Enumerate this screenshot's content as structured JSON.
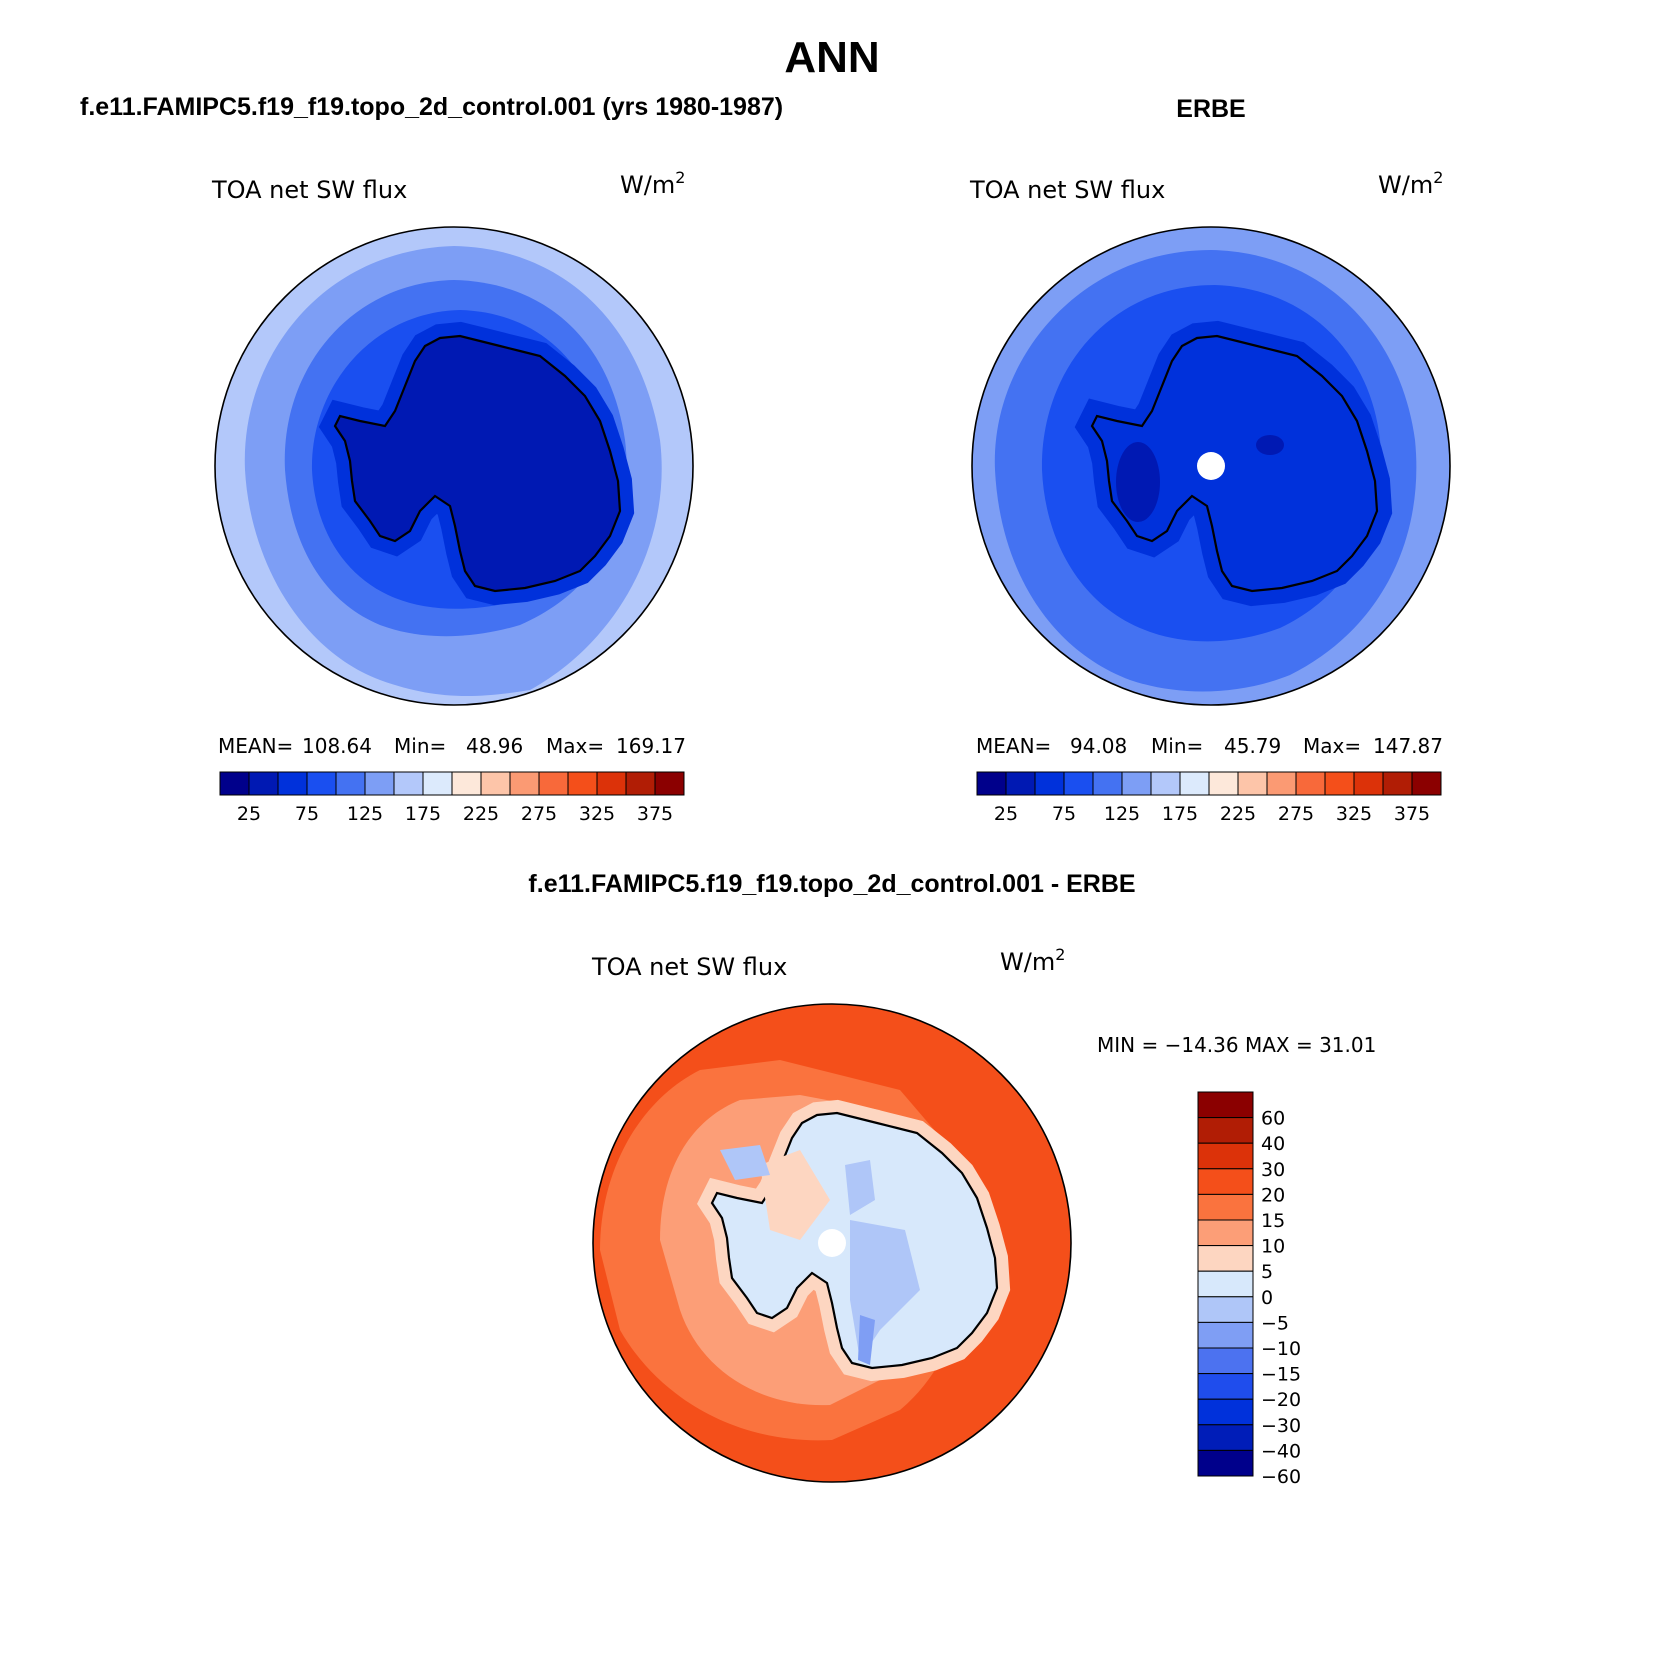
{
  "figure": {
    "title": "ANN",
    "panel_left_title": "f.e11.FAMIPC5.f19_f19.topo_2d_control.001 (yrs 1980-1987)",
    "panel_right_title": "ERBE",
    "panel_diff_title": "f.e11.FAMIPC5.f19_f19.topo_2d_control.001 - ERBE"
  },
  "panels": {
    "model": {
      "variable": "TOA net SW flux",
      "units": "W/m",
      "units_sup": "2",
      "mean_label": "MEAN=",
      "mean": "108.64",
      "min_label": "Min=",
      "min": "48.96",
      "max_label": "Max=",
      "max": "169.17"
    },
    "obs": {
      "variable": "TOA net SW flux",
      "units": "W/m",
      "units_sup": "2",
      "mean_label": "MEAN=",
      "mean": "94.08",
      "min_label": "Min=",
      "min": "45.79",
      "max_label": "Max=",
      "max": "147.87"
    },
    "diff": {
      "variable": "TOA net SW flux",
      "units": "W/m",
      "units_sup": "2",
      "minmax_text": "MIN = −14.36 MAX =   31.01"
    }
  },
  "colorbar_abs": {
    "colors": [
      "#00008b",
      "#0019b3",
      "#0031db",
      "#1a4ff0",
      "#4472f2",
      "#7d9ef5",
      "#b3c8fa",
      "#dceafc",
      "#fde8da",
      "#fdc5a9",
      "#fb9a73",
      "#f8693a",
      "#f44f1a",
      "#dc3209",
      "#b11d05",
      "#8b0000"
    ],
    "ticks": [
      "25",
      "75",
      "125",
      "175",
      "225",
      "275",
      "325",
      "375"
    ]
  },
  "colorbar_diff": {
    "colors": [
      "#8b0000",
      "#b11d05",
      "#dc3209",
      "#f44f1a",
      "#fa733e",
      "#fc9e77",
      "#fdd6c1",
      "#d7e8fb",
      "#afc6f8",
      "#7f9ef4",
      "#4c72f0",
      "#1f4ded",
      "#0031db",
      "#001db8",
      "#00008b"
    ],
    "ticks": [
      "60",
      "40",
      "30",
      "20",
      "15",
      "10",
      "5",
      "0",
      "−5",
      "−10",
      "−15",
      "−20",
      "−30",
      "−40",
      "−60"
    ]
  },
  "map_colors": {
    "outer_light_blue": "#b3c8fa",
    "light_blue": "#7d9ef5",
    "mid_blue": "#4472f2",
    "blue": "#1a4ff0",
    "deep_blue": "#0031db",
    "darker_blue": "#0019b3",
    "diff_red": "#f44f1a",
    "diff_orange": "#fa733e",
    "diff_salmon": "#fc9e77",
    "diff_peach": "#fdd6c1",
    "diff_pale_blue": "#d7e8fb",
    "diff_blue": "#afc6f8",
    "diff_blue2": "#7f9ef4"
  }
}
